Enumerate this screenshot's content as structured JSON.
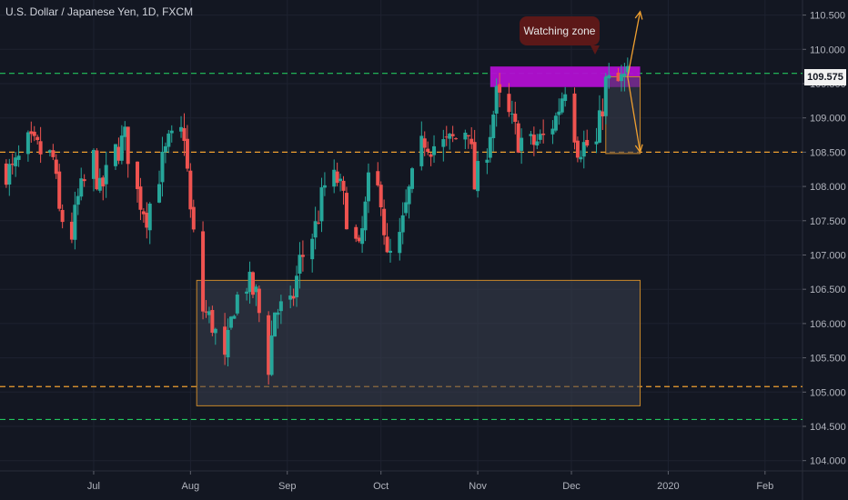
{
  "title": "U.S. Dollar / Japanese Yen, 1D, FXCM",
  "callout_text": "Watching zone",
  "last_price_label": "109.575",
  "colors": {
    "background": "#131722",
    "up": "#26a69a",
    "down": "#ef5350",
    "green_dashed": "#22c55e",
    "orange_dashed": "#f0a030",
    "watch_zone": "#b10fd1",
    "box_fill": "#3a3f4e",
    "box_stroke": "#c8872a"
  },
  "chart_data": {
    "type": "candlestick",
    "title": "U.S. Dollar / Japanese Yen, 1D, FXCM",
    "ylim": [
      103.85,
      110.72
    ],
    "xlim": [
      "2019-06-01",
      "2020-02-13"
    ],
    "y_ticks": [
      "110.500",
      "110.000",
      "109.500",
      "109.000",
      "108.500",
      "108.000",
      "107.500",
      "107.000",
      "106.500",
      "106.000",
      "105.500",
      "105.000",
      "104.500",
      "104.000"
    ],
    "x_ticks": [
      {
        "label": "Jul",
        "date": "2019-07-01"
      },
      {
        "label": "Aug",
        "date": "2019-08-01"
      },
      {
        "label": "Sep",
        "date": "2019-09-01"
      },
      {
        "label": "Oct",
        "date": "2019-10-01"
      },
      {
        "label": "Nov",
        "date": "2019-11-01"
      },
      {
        "label": "Dec",
        "date": "2019-12-01"
      },
      {
        "label": "2020",
        "date": "2020-01-01"
      },
      {
        "label": "Feb",
        "date": "2020-02-01"
      }
    ],
    "close_path": [
      [
        "2019-06-01",
        108.3
      ],
      [
        "2019-06-05",
        108.2
      ],
      [
        "2019-06-10",
        108.6
      ],
      [
        "2019-06-14",
        108.5
      ],
      [
        "2019-06-18",
        108.4
      ],
      [
        "2019-06-20",
        107.6
      ],
      [
        "2019-06-24",
        107.3
      ],
      [
        "2019-06-26",
        107.8
      ],
      [
        "2019-07-01",
        108.4
      ],
      [
        "2019-07-03",
        107.9
      ],
      [
        "2019-07-08",
        108.5
      ],
      [
        "2019-07-11",
        108.7
      ],
      [
        "2019-07-15",
        107.9
      ],
      [
        "2019-07-18",
        107.6
      ],
      [
        "2019-07-22",
        108.2
      ],
      [
        "2019-07-25",
        108.6
      ],
      [
        "2019-07-30",
        108.8
      ],
      [
        "2019-08-01",
        107.6
      ],
      [
        "2019-08-05",
        106.2
      ],
      [
        "2019-08-08",
        106.0
      ],
      [
        "2019-08-12",
        105.4
      ],
      [
        "2019-08-15",
        106.3
      ],
      [
        "2019-08-19",
        106.6
      ],
      [
        "2019-08-22",
        106.4
      ],
      [
        "2019-08-26",
        105.4
      ],
      [
        "2019-08-28",
        106.2
      ],
      [
        "2019-09-02",
        106.2
      ],
      [
        "2019-09-05",
        106.9
      ],
      [
        "2019-09-10",
        107.4
      ],
      [
        "2019-09-13",
        108.0
      ],
      [
        "2019-09-17",
        108.1
      ],
      [
        "2019-09-20",
        107.6
      ],
      [
        "2019-09-24",
        107.0
      ],
      [
        "2019-09-27",
        108.0
      ],
      [
        "2019-10-01",
        107.9
      ],
      [
        "2019-10-03",
        106.9
      ],
      [
        "2019-10-07",
        107.2
      ],
      [
        "2019-10-10",
        107.9
      ],
      [
        "2019-10-15",
        108.7
      ],
      [
        "2019-10-18",
        108.6
      ],
      [
        "2019-10-22",
        108.6
      ],
      [
        "2019-10-25",
        108.7
      ],
      [
        "2019-10-29",
        108.9
      ],
      [
        "2019-10-31",
        108.0
      ],
      [
        "2019-11-04",
        108.6
      ],
      [
        "2019-11-07",
        109.3
      ],
      [
        "2019-11-11",
        109.0
      ],
      [
        "2019-11-14",
        108.7
      ],
      [
        "2019-11-18",
        108.6
      ],
      [
        "2019-11-22",
        108.7
      ],
      [
        "2019-11-26",
        109.0
      ],
      [
        "2019-11-29",
        109.5
      ],
      [
        "2019-12-03",
        108.6
      ],
      [
        "2019-12-06",
        108.6
      ],
      [
        "2019-12-09",
        108.6
      ],
      [
        "2019-12-12",
        109.5
      ],
      [
        "2019-12-16",
        109.5
      ],
      [
        "2019-12-19",
        109.6
      ]
    ],
    "horizontal_levels": [
      {
        "value": 109.65,
        "style": "dashed",
        "color": "#22c55e"
      },
      {
        "value": 108.5,
        "style": "dashed",
        "color": "#f0a030"
      },
      {
        "value": 105.08,
        "style": "dashed",
        "color": "#f0a030"
      },
      {
        "value": 104.6,
        "style": "dashed",
        "color": "#22c55e"
      }
    ],
    "zones": [
      {
        "kind": "watch",
        "x_start": "2019-11-05",
        "x_end": "2019-12-23",
        "y_top": 109.75,
        "y_bottom": 109.45
      },
      {
        "kind": "target",
        "x_start": "2019-12-12",
        "x_end": "2019-12-23",
        "y_top": 109.6,
        "y_bottom": 108.48
      },
      {
        "kind": "support",
        "x_start": "2019-08-03",
        "x_end": "2019-12-23",
        "y_top": 106.63,
        "y_bottom": 104.8
      }
    ],
    "arrows": [
      {
        "from": [
          "2019-12-19",
          109.6
        ],
        "to": [
          "2019-12-23",
          110.55
        ]
      },
      {
        "from": [
          "2019-12-19",
          109.6
        ],
        "to": [
          "2019-12-23",
          108.5
        ]
      }
    ]
  }
}
